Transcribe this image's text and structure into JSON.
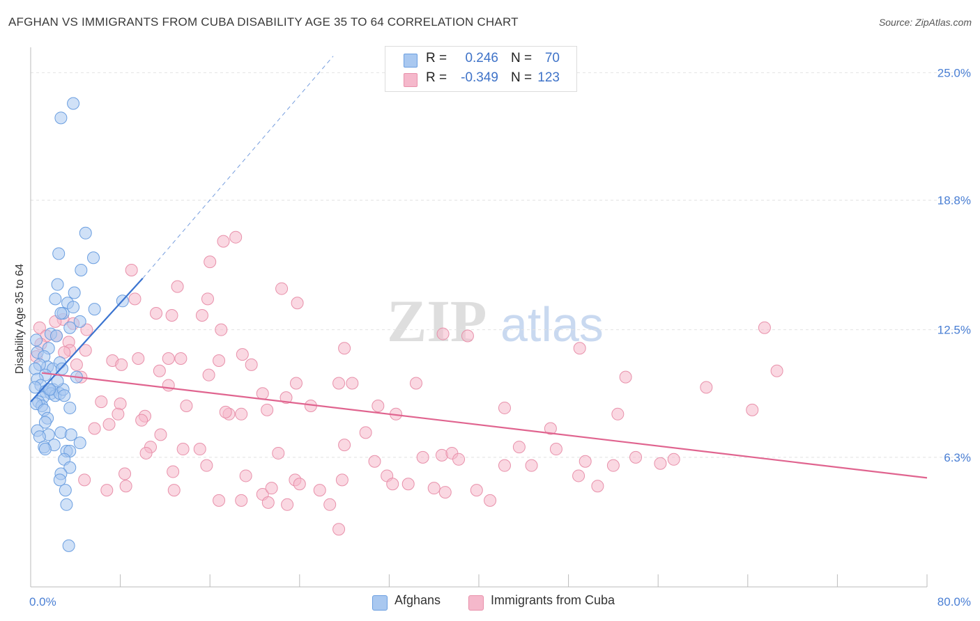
{
  "header": {
    "title": "AFGHAN VS IMMIGRANTS FROM CUBA DISABILITY AGE 35 TO 64 CORRELATION CHART",
    "source": "Source: ZipAtlas.com"
  },
  "watermark": {
    "zip": "ZIP",
    "atlas": "atlas"
  },
  "legend": {
    "rows": [
      {
        "r_label": "R =",
        "r_value": "0.246",
        "n_label": "N =",
        "n_value": "70",
        "color": "#a9c8f0"
      },
      {
        "r_label": "R =",
        "r_value": "-0.349",
        "n_label": "N =",
        "n_value": "123",
        "color": "#f5b8cb"
      }
    ]
  },
  "bottom_legend": [
    {
      "label": "Afghans",
      "color": "#a9c8f0"
    },
    {
      "label": "Immigrants from Cuba",
      "color": "#f5b8cb"
    }
  ],
  "chart_data": {
    "type": "scatter",
    "title": "AFGHAN VS IMMIGRANTS FROM CUBA DISABILITY AGE 35 TO 64 CORRELATION CHART",
    "xlabel": "",
    "ylabel": "Disability Age 35 to 64",
    "xlim": [
      0,
      80
    ],
    "ylim": [
      0,
      26.5
    ],
    "x_tick_labels": [
      "0.0%",
      "80.0%"
    ],
    "y_ticks": [
      6.3,
      12.5,
      18.8,
      25.0
    ],
    "y_tick_labels": [
      "6.3%",
      "12.5%",
      "18.8%",
      "25.0%"
    ],
    "grid": true,
    "legend_position": "top-center",
    "series": [
      {
        "name": "Afghans",
        "color": "#a9c8f0",
        "stroke": "#6a9ee0",
        "trend": {
          "x": [
            0,
            10
          ],
          "y": [
            9.0,
            15.0
          ],
          "dashed_to": [
            27,
            25.8
          ],
          "color": "#3b74d0"
        },
        "points": [
          [
            3.8,
            23.5
          ],
          [
            2.7,
            22.8
          ],
          [
            4.9,
            17.2
          ],
          [
            2.5,
            16.2
          ],
          [
            5.6,
            16.0
          ],
          [
            4.5,
            15.4
          ],
          [
            2.4,
            14.7
          ],
          [
            3.9,
            14.3
          ],
          [
            2.2,
            14.0
          ],
          [
            8.2,
            13.9
          ],
          [
            3.3,
            13.8
          ],
          [
            3.8,
            13.6
          ],
          [
            5.7,
            13.5
          ],
          [
            2.9,
            13.3
          ],
          [
            2.7,
            13.3
          ],
          [
            1.8,
            12.3
          ],
          [
            3.5,
            12.6
          ],
          [
            4.4,
            12.9
          ],
          [
            2.3,
            12.2
          ],
          [
            1.6,
            11.6
          ],
          [
            0.5,
            12.0
          ],
          [
            0.6,
            11.4
          ],
          [
            1.2,
            11.2
          ],
          [
            1.5,
            10.7
          ],
          [
            0.8,
            10.8
          ],
          [
            0.4,
            10.6
          ],
          [
            2.0,
            10.6
          ],
          [
            2.6,
            10.9
          ],
          [
            1.3,
            10.3
          ],
          [
            0.6,
            10.1
          ],
          [
            2.8,
            10.6
          ],
          [
            4.1,
            10.2
          ],
          [
            0.9,
            9.8
          ],
          [
            0.4,
            9.7
          ],
          [
            1.3,
            9.5
          ],
          [
            1.6,
            9.6
          ],
          [
            2.0,
            9.6
          ],
          [
            1.8,
            9.4
          ],
          [
            2.2,
            9.3
          ],
          [
            2.6,
            9.4
          ],
          [
            2.9,
            9.6
          ],
          [
            2.4,
            10.0
          ],
          [
            3.0,
            9.3
          ],
          [
            1.1,
            9.2
          ],
          [
            0.7,
            9.0
          ],
          [
            1.0,
            8.8
          ],
          [
            0.5,
            8.9
          ],
          [
            1.2,
            8.6
          ],
          [
            3.5,
            8.7
          ],
          [
            1.5,
            8.2
          ],
          [
            1.3,
            8.0
          ],
          [
            0.6,
            7.6
          ],
          [
            2.7,
            7.5
          ],
          [
            3.6,
            7.4
          ],
          [
            1.6,
            7.4
          ],
          [
            0.8,
            7.3
          ],
          [
            4.4,
            7.0
          ],
          [
            2.1,
            6.9
          ],
          [
            1.2,
            6.8
          ],
          [
            1.3,
            6.7
          ],
          [
            3.2,
            6.6
          ],
          [
            3.5,
            6.6
          ],
          [
            3.0,
            6.2
          ],
          [
            3.5,
            5.8
          ],
          [
            2.7,
            5.5
          ],
          [
            2.6,
            5.2
          ],
          [
            3.1,
            4.7
          ],
          [
            3.2,
            4.0
          ],
          [
            3.4,
            2.0
          ],
          [
            1.7,
            9.6
          ]
        ]
      },
      {
        "name": "Immigrants from Cuba",
        "color": "#f5b8cb",
        "stroke": "#e890aa",
        "trend": {
          "x": [
            1,
            80
          ],
          "y": [
            10.4,
            5.3
          ],
          "color": "#e0648f"
        },
        "points": [
          [
            18.3,
            17.0
          ],
          [
            17.2,
            16.8
          ],
          [
            16.0,
            15.8
          ],
          [
            9.0,
            15.4
          ],
          [
            13.1,
            14.6
          ],
          [
            22.4,
            14.5
          ],
          [
            9.3,
            14.0
          ],
          [
            15.8,
            14.0
          ],
          [
            23.8,
            13.8
          ],
          [
            11.2,
            13.3
          ],
          [
            15.3,
            13.2
          ],
          [
            12.6,
            13.2
          ],
          [
            2.9,
            13.0
          ],
          [
            2.2,
            12.9
          ],
          [
            3.8,
            12.8
          ],
          [
            0.8,
            12.6
          ],
          [
            5.0,
            12.5
          ],
          [
            17.0,
            12.5
          ],
          [
            65.5,
            12.6
          ],
          [
            36.8,
            12.3
          ],
          [
            39.0,
            12.2
          ],
          [
            2.3,
            12.2
          ],
          [
            1.4,
            12.2
          ],
          [
            0.9,
            11.8
          ],
          [
            3.4,
            11.9
          ],
          [
            3.5,
            11.5
          ],
          [
            49.0,
            11.6
          ],
          [
            28.0,
            11.6
          ],
          [
            3.0,
            11.4
          ],
          [
            4.9,
            11.5
          ],
          [
            0.5,
            11.2
          ],
          [
            9.6,
            11.1
          ],
          [
            7.3,
            11.0
          ],
          [
            12.3,
            11.1
          ],
          [
            13.4,
            11.1
          ],
          [
            16.8,
            11.0
          ],
          [
            18.9,
            11.3
          ],
          [
            19.7,
            10.8
          ],
          [
            8.1,
            10.8
          ],
          [
            4.1,
            10.8
          ],
          [
            11.5,
            10.5
          ],
          [
            15.9,
            10.3
          ],
          [
            53.1,
            10.2
          ],
          [
            66.6,
            10.5
          ],
          [
            4.5,
            10.2
          ],
          [
            12.3,
            9.8
          ],
          [
            23.7,
            9.9
          ],
          [
            27.5,
            9.9
          ],
          [
            28.7,
            9.9
          ],
          [
            34.4,
            9.9
          ],
          [
            60.3,
            9.7
          ],
          [
            20.7,
            9.4
          ],
          [
            22.8,
            9.2
          ],
          [
            6.3,
            9.0
          ],
          [
            8.0,
            8.9
          ],
          [
            13.9,
            8.8
          ],
          [
            25.0,
            8.8
          ],
          [
            31.0,
            8.8
          ],
          [
            42.3,
            8.7
          ],
          [
            64.4,
            8.6
          ],
          [
            7.8,
            8.4
          ],
          [
            10.2,
            8.3
          ],
          [
            17.7,
            8.4
          ],
          [
            17.4,
            8.5
          ],
          [
            18.8,
            8.4
          ],
          [
            21.1,
            8.6
          ],
          [
            32.6,
            8.4
          ],
          [
            52.4,
            8.4
          ],
          [
            9.9,
            8.1
          ],
          [
            7.0,
            7.9
          ],
          [
            5.7,
            7.7
          ],
          [
            46.4,
            7.7
          ],
          [
            11.6,
            7.4
          ],
          [
            29.9,
            7.5
          ],
          [
            28.0,
            6.9
          ],
          [
            10.7,
            6.8
          ],
          [
            13.6,
            6.7
          ],
          [
            15.1,
            6.7
          ],
          [
            22.1,
            6.5
          ],
          [
            36.7,
            6.4
          ],
          [
            37.6,
            6.5
          ],
          [
            43.6,
            6.8
          ],
          [
            46.9,
            6.7
          ],
          [
            54.0,
            6.3
          ],
          [
            57.4,
            6.2
          ],
          [
            30.7,
            6.1
          ],
          [
            35.0,
            6.3
          ],
          [
            38.2,
            6.2
          ],
          [
            49.5,
            6.1
          ],
          [
            10.3,
            6.5
          ],
          [
            15.7,
            5.9
          ],
          [
            42.3,
            5.9
          ],
          [
            44.7,
            5.9
          ],
          [
            48.9,
            5.4
          ],
          [
            52.0,
            5.9
          ],
          [
            56.2,
            6.0
          ],
          [
            31.8,
            5.4
          ],
          [
            19.2,
            5.4
          ],
          [
            23.6,
            5.2
          ],
          [
            27.8,
            5.2
          ],
          [
            32.3,
            5.0
          ],
          [
            33.7,
            5.0
          ],
          [
            36.0,
            4.8
          ],
          [
            37.0,
            4.6
          ],
          [
            39.8,
            4.7
          ],
          [
            41.0,
            4.2
          ],
          [
            4.8,
            5.2
          ],
          [
            6.8,
            4.7
          ],
          [
            8.5,
            4.9
          ],
          [
            12.8,
            4.7
          ],
          [
            20.7,
            4.5
          ],
          [
            18.8,
            4.2
          ],
          [
            21.2,
            4.1
          ],
          [
            22.9,
            4.0
          ],
          [
            26.7,
            4.0
          ],
          [
            16.8,
            4.2
          ],
          [
            50.6,
            4.9
          ],
          [
            27.5,
            2.8
          ],
          [
            8.4,
            5.5
          ],
          [
            12.7,
            5.6
          ],
          [
            21.5,
            4.8
          ],
          [
            24.0,
            5.0
          ],
          [
            25.8,
            4.7
          ]
        ]
      }
    ]
  }
}
